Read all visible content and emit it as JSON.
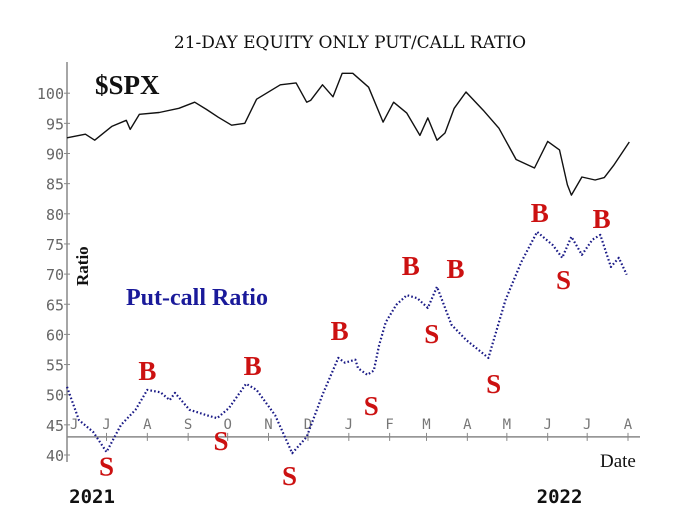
{
  "chart_data": {
    "type": "line",
    "title": "21-DAY EQUITY ONLY PUT/CALL RATIO",
    "ylabel": "Ratio",
    "xlabel": "Date",
    "ylim": [
      40,
      105
    ],
    "yticks": [
      40,
      45,
      50,
      55,
      60,
      65,
      70,
      75,
      80,
      85,
      90,
      95,
      100
    ],
    "xlim": [
      "2021-06-01",
      "2022-08-05"
    ],
    "xticks": [
      {
        "date": "2021-06-01",
        "label": "J"
      },
      {
        "date": "2021-07-01",
        "label": "J"
      },
      {
        "date": "2021-08-01",
        "label": "A"
      },
      {
        "date": "2021-09-01",
        "label": "S"
      },
      {
        "date": "2021-10-01",
        "label": "O"
      },
      {
        "date": "2021-11-01",
        "label": "N"
      },
      {
        "date": "2021-12-01",
        "label": "D"
      },
      {
        "date": "2022-01-01",
        "label": "J"
      },
      {
        "date": "2022-02-01",
        "label": "F"
      },
      {
        "date": "2022-03-01",
        "label": "M"
      },
      {
        "date": "2022-04-01",
        "label": "A"
      },
      {
        "date": "2022-05-01",
        "label": "M"
      },
      {
        "date": "2022-06-01",
        "label": "J"
      },
      {
        "date": "2022-07-01",
        "label": "J"
      },
      {
        "date": "2022-08-01",
        "label": "A"
      }
    ],
    "year_labels": [
      {
        "date": "2021-06-20",
        "label": "2021"
      },
      {
        "date": "2022-06-10",
        "label": "2022"
      }
    ],
    "grid": false,
    "x_axis_at": 43,
    "series": [
      {
        "name": "$SPX",
        "color": "#111111",
        "style": "solid",
        "points": [
          [
            "2021-06-01",
            92.6
          ],
          [
            "2021-06-15",
            93.2
          ],
          [
            "2021-06-22",
            92.2
          ],
          [
            "2021-07-05",
            94.5
          ],
          [
            "2021-07-16",
            95.5
          ],
          [
            "2021-07-19",
            94.0
          ],
          [
            "2021-07-26",
            96.5
          ],
          [
            "2021-08-10",
            96.8
          ],
          [
            "2021-08-25",
            97.5
          ],
          [
            "2021-09-06",
            98.5
          ],
          [
            "2021-09-15",
            97.3
          ],
          [
            "2021-09-24",
            96.0
          ],
          [
            "2021-10-04",
            94.7
          ],
          [
            "2021-10-14",
            95.0
          ],
          [
            "2021-10-23",
            99.0
          ],
          [
            "2021-11-10",
            101.4
          ],
          [
            "2021-11-22",
            101.7
          ],
          [
            "2021-11-30",
            98.5
          ],
          [
            "2021-12-03",
            98.8
          ],
          [
            "2021-12-12",
            101.4
          ],
          [
            "2021-12-20",
            99.4
          ],
          [
            "2021-12-27",
            103.3
          ],
          [
            "2022-01-04",
            103.3
          ],
          [
            "2022-01-16",
            101.0
          ],
          [
            "2022-01-27",
            95.2
          ],
          [
            "2022-02-04",
            98.5
          ],
          [
            "2022-02-14",
            96.7
          ],
          [
            "2022-02-24",
            93.0
          ],
          [
            "2022-03-02",
            95.9
          ],
          [
            "2022-03-09",
            92.2
          ],
          [
            "2022-03-15",
            93.4
          ],
          [
            "2022-03-22",
            97.5
          ],
          [
            "2022-03-31",
            100.2
          ],
          [
            "2022-04-13",
            97.2
          ],
          [
            "2022-04-25",
            94.2
          ],
          [
            "2022-05-08",
            89.0
          ],
          [
            "2022-05-22",
            87.6
          ],
          [
            "2022-06-01",
            92.0
          ],
          [
            "2022-06-10",
            90.6
          ],
          [
            "2022-06-16",
            84.8
          ],
          [
            "2022-06-19",
            83.1
          ],
          [
            "2022-06-27",
            86.1
          ],
          [
            "2022-07-07",
            85.6
          ],
          [
            "2022-07-14",
            86.0
          ],
          [
            "2022-07-21",
            88.0
          ],
          [
            "2022-08-02",
            91.9
          ]
        ]
      },
      {
        "name": "Put-call Ratio",
        "color": "#1a1a86",
        "style": "dotted",
        "points": [
          [
            "2021-06-01",
            51.3
          ],
          [
            "2021-06-10",
            45.8
          ],
          [
            "2021-06-21",
            43.8
          ],
          [
            "2021-07-01",
            40.5
          ],
          [
            "2021-07-12",
            45.0
          ],
          [
            "2021-07-23",
            47.5
          ],
          [
            "2021-08-01",
            50.8
          ],
          [
            "2021-08-11",
            50.4
          ],
          [
            "2021-08-18",
            49.1
          ],
          [
            "2021-08-22",
            50.3
          ],
          [
            "2021-09-02",
            47.5
          ],
          [
            "2021-09-15",
            46.6
          ],
          [
            "2021-09-23",
            46.1
          ],
          [
            "2021-10-02",
            47.8
          ],
          [
            "2021-10-15",
            51.8
          ],
          [
            "2021-10-23",
            50.8
          ],
          [
            "2021-11-06",
            46.6
          ],
          [
            "2021-11-19",
            40.3
          ],
          [
            "2021-11-30",
            43.0
          ],
          [
            "2021-12-12",
            50.0
          ],
          [
            "2021-12-24",
            56.1
          ],
          [
            "2021-12-29",
            55.3
          ],
          [
            "2022-01-06",
            55.8
          ],
          [
            "2022-01-08",
            54.4
          ],
          [
            "2022-01-15",
            53.3
          ],
          [
            "2022-01-20",
            54.0
          ],
          [
            "2022-01-24",
            58.2
          ],
          [
            "2022-01-29",
            62.0
          ],
          [
            "2022-02-06",
            64.9
          ],
          [
            "2022-02-14",
            66.5
          ],
          [
            "2022-02-22",
            66.0
          ],
          [
            "2022-03-02",
            64.4
          ],
          [
            "2022-03-09",
            67.9
          ],
          [
            "2022-03-20",
            61.6
          ],
          [
            "2022-03-31",
            59.1
          ],
          [
            "2022-04-17",
            56.1
          ],
          [
            "2022-04-30",
            65.7
          ],
          [
            "2022-05-12",
            72.0
          ],
          [
            "2022-05-24",
            77.0
          ],
          [
            "2022-06-05",
            74.8
          ],
          [
            "2022-06-12",
            72.7
          ],
          [
            "2022-06-19",
            76.2
          ],
          [
            "2022-06-27",
            73.2
          ],
          [
            "2022-07-05",
            75.7
          ],
          [
            "2022-07-11",
            76.5
          ],
          [
            "2022-07-19",
            71.2
          ],
          [
            "2022-07-25",
            72.7
          ],
          [
            "2022-07-31",
            69.9
          ]
        ]
      }
    ],
    "signals": [
      {
        "label": "S",
        "date": "2021-07-01",
        "value": 38.3
      },
      {
        "label": "B",
        "date": "2021-08-01",
        "value": 54.1
      },
      {
        "label": "S",
        "date": "2021-09-26",
        "value": 42.5
      },
      {
        "label": "B",
        "date": "2021-10-20",
        "value": 54.9
      },
      {
        "label": "S",
        "date": "2021-11-17",
        "value": 36.7
      },
      {
        "label": "B",
        "date": "2021-12-25",
        "value": 60.7
      },
      {
        "label": "S",
        "date": "2022-01-18",
        "value": 48.3
      },
      {
        "label": "B",
        "date": "2022-02-17",
        "value": 71.5
      },
      {
        "label": "S",
        "date": "2022-03-05",
        "value": 60.2
      },
      {
        "label": "B",
        "date": "2022-03-23",
        "value": 71.0
      },
      {
        "label": "S",
        "date": "2022-04-21",
        "value": 51.9
      },
      {
        "label": "B",
        "date": "2022-05-26",
        "value": 80.3
      },
      {
        "label": "S",
        "date": "2022-06-13",
        "value": 69.2
      },
      {
        "label": "B",
        "date": "2022-07-12",
        "value": 79.3
      }
    ],
    "signal_color": "#cc1111",
    "annotations": {
      "spx_label": "$SPX",
      "pc_label": "Put-call Ratio",
      "pc_label_color": "#1a1a9a"
    }
  }
}
